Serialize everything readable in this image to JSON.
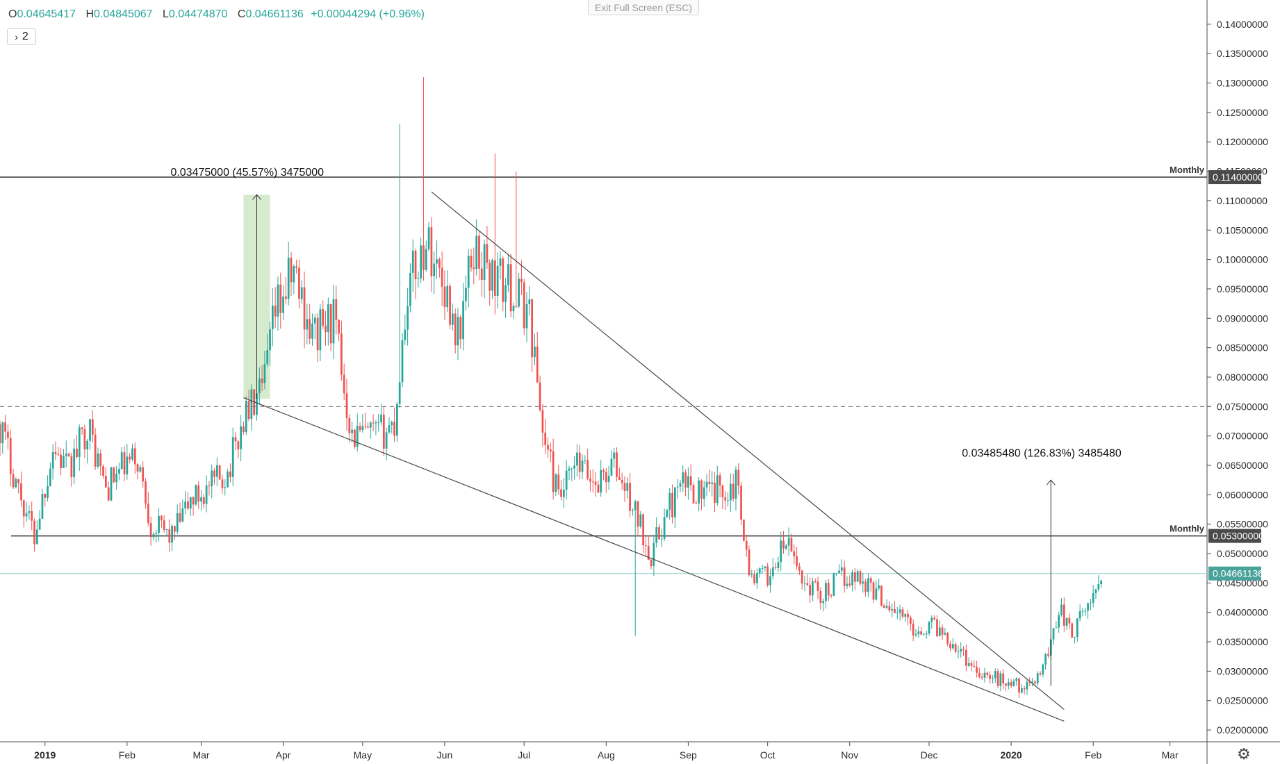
{
  "header": {
    "open_label": "O",
    "open": "0.04645417",
    "high_label": "H",
    "high": "0.04845067",
    "low_label": "L",
    "low": "0.04474870",
    "close_label": "C",
    "close": "0.04661136",
    "change": "+0.00044294 (+0.96%)"
  },
  "toolbar": {
    "collapse_label": "2",
    "exit_fullscreen_label": "Exit Full Screen (ESC)",
    "settings_icon": "gear-icon"
  },
  "colors": {
    "up": "#26a69a",
    "down": "#ef5350",
    "current_price_tag": "#4aa39b",
    "level_tag": "#4a4a4a",
    "measure_box": "#cfe8c4"
  },
  "chart_data": {
    "type": "candlestick",
    "timeframe": "daily",
    "current_price": 0.04661136,
    "y_axis": {
      "min": 0.018,
      "max": 0.144,
      "ticks": [
        "0.02000000",
        "0.02500000",
        "0.03000000",
        "0.03500000",
        "0.04000000",
        "0.04500000",
        "0.05000000",
        "0.05500000",
        "0.06000000",
        "0.06500000",
        "0.07000000",
        "0.07500000",
        "0.08000000",
        "0.08500000",
        "0.09000000",
        "0.09500000",
        "0.10000000",
        "0.10500000",
        "0.11000000",
        "0.11500000",
        "0.12000000",
        "0.12500000",
        "0.13000000",
        "0.13500000",
        "0.14000000"
      ]
    },
    "x_axis": {
      "start": "2018-12-15",
      "end": "2020-03-15",
      "ticks": [
        {
          "label": "2019",
          "date": "2019-01-01",
          "bold": true
        },
        {
          "label": "Feb",
          "date": "2019-02-01",
          "bold": false
        },
        {
          "label": "Mar",
          "date": "2019-03-01",
          "bold": false
        },
        {
          "label": "Apr",
          "date": "2019-04-01",
          "bold": false
        },
        {
          "label": "May",
          "date": "2019-05-01",
          "bold": false
        },
        {
          "label": "Jun",
          "date": "2019-06-01",
          "bold": false
        },
        {
          "label": "Jul",
          "date": "2019-07-01",
          "bold": false
        },
        {
          "label": "Aug",
          "date": "2019-08-01",
          "bold": false
        },
        {
          "label": "Sep",
          "date": "2019-09-01",
          "bold": false
        },
        {
          "label": "Oct",
          "date": "2019-10-01",
          "bold": false
        },
        {
          "label": "Nov",
          "date": "2019-11-01",
          "bold": false
        },
        {
          "label": "Dec",
          "date": "2019-12-01",
          "bold": false
        },
        {
          "label": "2020",
          "date": "2020-01-01",
          "bold": true
        },
        {
          "label": "Feb",
          "date": "2020-02-01",
          "bold": false
        },
        {
          "label": "Mar",
          "date": "2020-03-01",
          "bold": false
        }
      ]
    },
    "price_path": [
      [
        "2018-12-15",
        0.072
      ],
      [
        "2018-12-22",
        0.061
      ],
      [
        "2018-12-28",
        0.053
      ],
      [
        "2019-01-04",
        0.068
      ],
      [
        "2019-01-10",
        0.064
      ],
      [
        "2019-01-17",
        0.072
      ],
      [
        "2019-01-24",
        0.061
      ],
      [
        "2019-01-31",
        0.065
      ],
      [
        "2019-02-05",
        0.066
      ],
      [
        "2019-02-10",
        0.055
      ],
      [
        "2019-02-18",
        0.053
      ],
      [
        "2019-02-25",
        0.059
      ],
      [
        "2019-03-04",
        0.061
      ],
      [
        "2019-03-11",
        0.064
      ],
      [
        "2019-03-18",
        0.074
      ],
      [
        "2019-03-24",
        0.077
      ],
      [
        "2019-03-29",
        0.091
      ],
      [
        "2019-04-05",
        0.098
      ],
      [
        "2019-04-12",
        0.087
      ],
      [
        "2019-04-20",
        0.09
      ],
      [
        "2019-04-27",
        0.07
      ],
      [
        "2019-05-06",
        0.07
      ],
      [
        "2019-05-13",
        0.072
      ],
      [
        "2019-05-18",
        0.095
      ],
      [
        "2019-05-25",
        0.103
      ],
      [
        "2019-05-31",
        0.097
      ],
      [
        "2019-06-06",
        0.087
      ],
      [
        "2019-06-12",
        0.102
      ],
      [
        "2019-06-19",
        0.097
      ],
      [
        "2019-06-26",
        0.095
      ],
      [
        "2019-07-03",
        0.091
      ],
      [
        "2019-07-08",
        0.071
      ],
      [
        "2019-07-14",
        0.059
      ],
      [
        "2019-07-21",
        0.065
      ],
      [
        "2019-07-28",
        0.062
      ],
      [
        "2019-08-04",
        0.065
      ],
      [
        "2019-08-11",
        0.058
      ],
      [
        "2019-08-18",
        0.05
      ],
      [
        "2019-08-25",
        0.058
      ],
      [
        "2019-08-31",
        0.062
      ],
      [
        "2019-09-07",
        0.06
      ],
      [
        "2019-09-14",
        0.061
      ],
      [
        "2019-09-20",
        0.062
      ],
      [
        "2019-09-24",
        0.046
      ],
      [
        "2019-10-01",
        0.046
      ],
      [
        "2019-10-08",
        0.052
      ],
      [
        "2019-10-15",
        0.045
      ],
      [
        "2019-10-22",
        0.043
      ],
      [
        "2019-10-29",
        0.046
      ],
      [
        "2019-11-05",
        0.046
      ],
      [
        "2019-11-12",
        0.043
      ],
      [
        "2019-11-19",
        0.04
      ],
      [
        "2019-11-26",
        0.037
      ],
      [
        "2019-12-03",
        0.038
      ],
      [
        "2019-12-10",
        0.035
      ],
      [
        "2019-12-17",
        0.031
      ],
      [
        "2019-12-24",
        0.029
      ],
      [
        "2020-01-01",
        0.028
      ],
      [
        "2020-01-08",
        0.027
      ],
      [
        "2020-01-15",
        0.033
      ],
      [
        "2020-01-19",
        0.041
      ],
      [
        "2020-01-24",
        0.036
      ],
      [
        "2020-01-31",
        0.042
      ],
      [
        "2020-02-04",
        0.0466
      ]
    ],
    "spikes": [
      {
        "date": "2019-05-15",
        "high": 0.123
      },
      {
        "date": "2019-05-24",
        "high": 0.131
      },
      {
        "date": "2019-06-20",
        "high": 0.118
      },
      {
        "date": "2019-06-28",
        "high": 0.115
      },
      {
        "date": "2019-08-12",
        "low": 0.036
      }
    ],
    "horizontal_levels": [
      {
        "price": 0.114,
        "label": "Monthly",
        "tag": "0.11400000",
        "style": "solid"
      },
      {
        "price": 0.053,
        "label": "Monthly",
        "tag": "0.05300000",
        "style": "solid"
      },
      {
        "price": 0.075,
        "label": "",
        "tag": "",
        "style": "dashed"
      }
    ],
    "trendlines": [
      {
        "from": [
          "2019-05-27",
          0.1115
        ],
        "to": [
          "2020-01-21",
          0.0235
        ]
      },
      {
        "from": [
          "2019-03-17",
          0.0765
        ],
        "to": [
          "2020-01-21",
          0.0215
        ]
      }
    ],
    "measurements": [
      {
        "text": "0.03475000 (45.57%) 3475000",
        "from_date": "2019-03-17",
        "to_date": "2019-03-27",
        "from_price": 0.0763,
        "to_price": 0.111
      },
      {
        "text": "0.03485480 (126.83%) 3485480",
        "date": "2020-01-16",
        "from_price": 0.0275,
        "to_price": 0.0625
      }
    ]
  }
}
